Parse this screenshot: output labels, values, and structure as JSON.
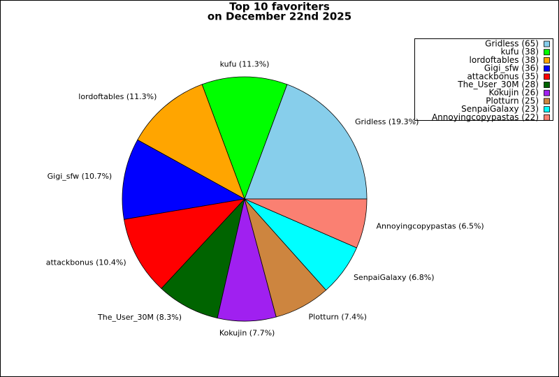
{
  "chart_data": {
    "type": "pie",
    "title": "Top 10 favoriters",
    "subtitle": "on December 22nd 2025",
    "categories": [
      "Gridless",
      "kufu",
      "lordoftables",
      "Gigi_sfw",
      "attackbonus",
      "The_User_30M",
      "Kokujin",
      "Plotturn",
      "SenpaiGalaxy",
      "Annoyingcopypastas"
    ],
    "values": [
      65,
      38,
      38,
      36,
      35,
      28,
      26,
      25,
      23,
      22
    ],
    "slice_labels": [
      "Gridless (19.3%)",
      "kufu (11.3%)",
      "lordoftables (11.3%)",
      "Gigi_sfw (10.7%)",
      "attackbonus (10.4%)",
      "The_User_30M (8.3%)",
      "Kokujin (7.7%)",
      "Plotturn (7.4%)",
      "SenpaiGalaxy (6.8%)",
      "Annoyingcopypastas (6.5%)"
    ],
    "legend_labels": [
      "Gridless (65)",
      "kufu (38)",
      "lordoftables (38)",
      "Gigi_sfw (36)",
      "attackbonus (35)",
      "The_User_30M (28)",
      "Kokujin (26)",
      "Plotturn (25)",
      "SenpaiGalaxy (23)",
      "Annoyingcopypastas (22)"
    ],
    "colors": [
      "#87ceeb",
      "#00ff00",
      "#ffa500",
      "#0000ff",
      "#ff0000",
      "#006400",
      "#a020f0",
      "#cd853f",
      "#00ffff",
      "#fa8072"
    ],
    "legend": "upper right"
  }
}
